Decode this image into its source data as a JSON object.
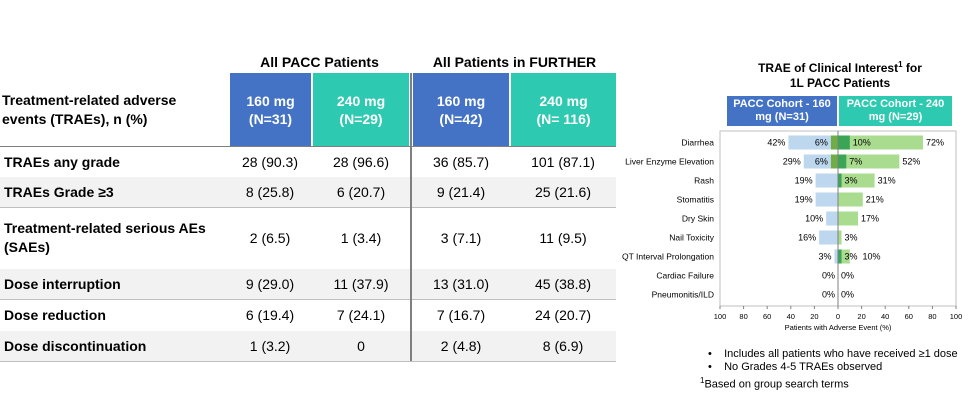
{
  "table": {
    "group_headers": [
      "All PACC Patients",
      "All Patients in FURTHER"
    ],
    "row_header_label": "Treatment-related adverse\nevents (TRAEs), n (%)",
    "columns": [
      {
        "label": "160 mg\n(N=31)"
      },
      {
        "label": "240 mg\n(N=29)"
      },
      {
        "label": "160 mg\n(N=42)"
      },
      {
        "label": "240 mg\n(N= 116)"
      }
    ],
    "rows": [
      {
        "label": "TRAEs any grade",
        "values": [
          "28 (90.3)",
          "28 (96.6)",
          "36 (85.7)",
          "101 (87.1)"
        ]
      },
      {
        "label": "TRAEs Grade ≥3",
        "values": [
          "8 (25.8)",
          "6 (20.7)",
          "9 (21.4)",
          "25 (21.6)"
        ]
      },
      {
        "label": "Treatment-related serious AEs\n(SAEs)",
        "values": [
          "2 (6.5)",
          "1 (3.4)",
          "3 (7.1)",
          "11 (9.5)"
        ]
      },
      {
        "label": "Dose interruption",
        "values": [
          "9 (29.0)",
          "11 (37.9)",
          "13 (31.0)",
          "45 (38.8)"
        ]
      },
      {
        "label": "Dose reduction",
        "values": [
          "6 (19.4)",
          "7 (24.1)",
          "7 (16.7)",
          "24 (20.7)"
        ]
      },
      {
        "label": "Dose discontinuation",
        "values": [
          "1 (3.2)",
          "0",
          "2 (4.8)",
          "8 (6.9)"
        ]
      }
    ]
  },
  "chart": {
    "title_line1": "TRAE of Clinical Interest",
    "title_sup": "1",
    "title_tail": " for",
    "title_line2": "1L PACC Patients",
    "cohort_left": "PACC Cohort - 160 mg (N=31)",
    "cohort_right": "PACC Cohort - 240 mg (N=29)",
    "xlabel": "Patients with Adverse Event (%)",
    "ticks": [
      "100",
      "80",
      "60",
      "40",
      "20",
      "0",
      "20",
      "40",
      "60",
      "80",
      "100"
    ],
    "colors": {
      "left_all": "#bdd7ee",
      "left_g3": "#70ad47",
      "right_all": "#a9dc8f",
      "right_g3": "#3aa655"
    }
  },
  "chart_data": {
    "type": "bar",
    "orientation": "horizontal-butterfly",
    "xlabel": "Patients with Adverse Event (%)",
    "xlim": [
      -100,
      100
    ],
    "categories": [
      "Diarrhea",
      "Liver Enzyme Elevation",
      "Rash",
      "Stomatitis",
      "Dry Skin",
      "Nail Toxicity",
      "QT Interval Prolongation",
      "Cardiac Failure",
      "Pneumonitis/ILD"
    ],
    "series": [
      {
        "name": "PACC Cohort - 160 mg (N=31)",
        "side": "left",
        "all_grade": [
          42,
          29,
          19,
          19,
          10,
          16,
          3,
          0,
          0
        ],
        "grade3": [
          6,
          6,
          0,
          0,
          0,
          0,
          0,
          0,
          0
        ],
        "labels_all": [
          "42%",
          "29%",
          "19%",
          "19%",
          "10%",
          "16%",
          "3%",
          "0%",
          "0%"
        ],
        "labels_g3": [
          "6%",
          "6%",
          "",
          "",
          "",
          "",
          "",
          "",
          ""
        ]
      },
      {
        "name": "PACC Cohort - 240 mg (N=29)",
        "side": "right",
        "all_grade": [
          72,
          52,
          31,
          21,
          17,
          3,
          10,
          0,
          0
        ],
        "grade3": [
          10,
          7,
          3,
          0,
          0,
          0,
          3,
          0,
          0
        ],
        "labels_all": [
          "72%",
          "52%",
          "31%",
          "21%",
          "17%",
          "3%",
          "10%",
          "0%",
          "0%"
        ],
        "labels_g3": [
          "10%",
          "7%",
          "3%",
          "",
          "",
          "",
          "3%",
          "",
          ""
        ]
      }
    ]
  },
  "notes": {
    "bullet1": "Includes all patients who have received ≥1 dose",
    "bullet2": "No Grades 4-5 TRAEs observed",
    "footnote_sup": "1",
    "footnote": "Based on group search terms"
  }
}
